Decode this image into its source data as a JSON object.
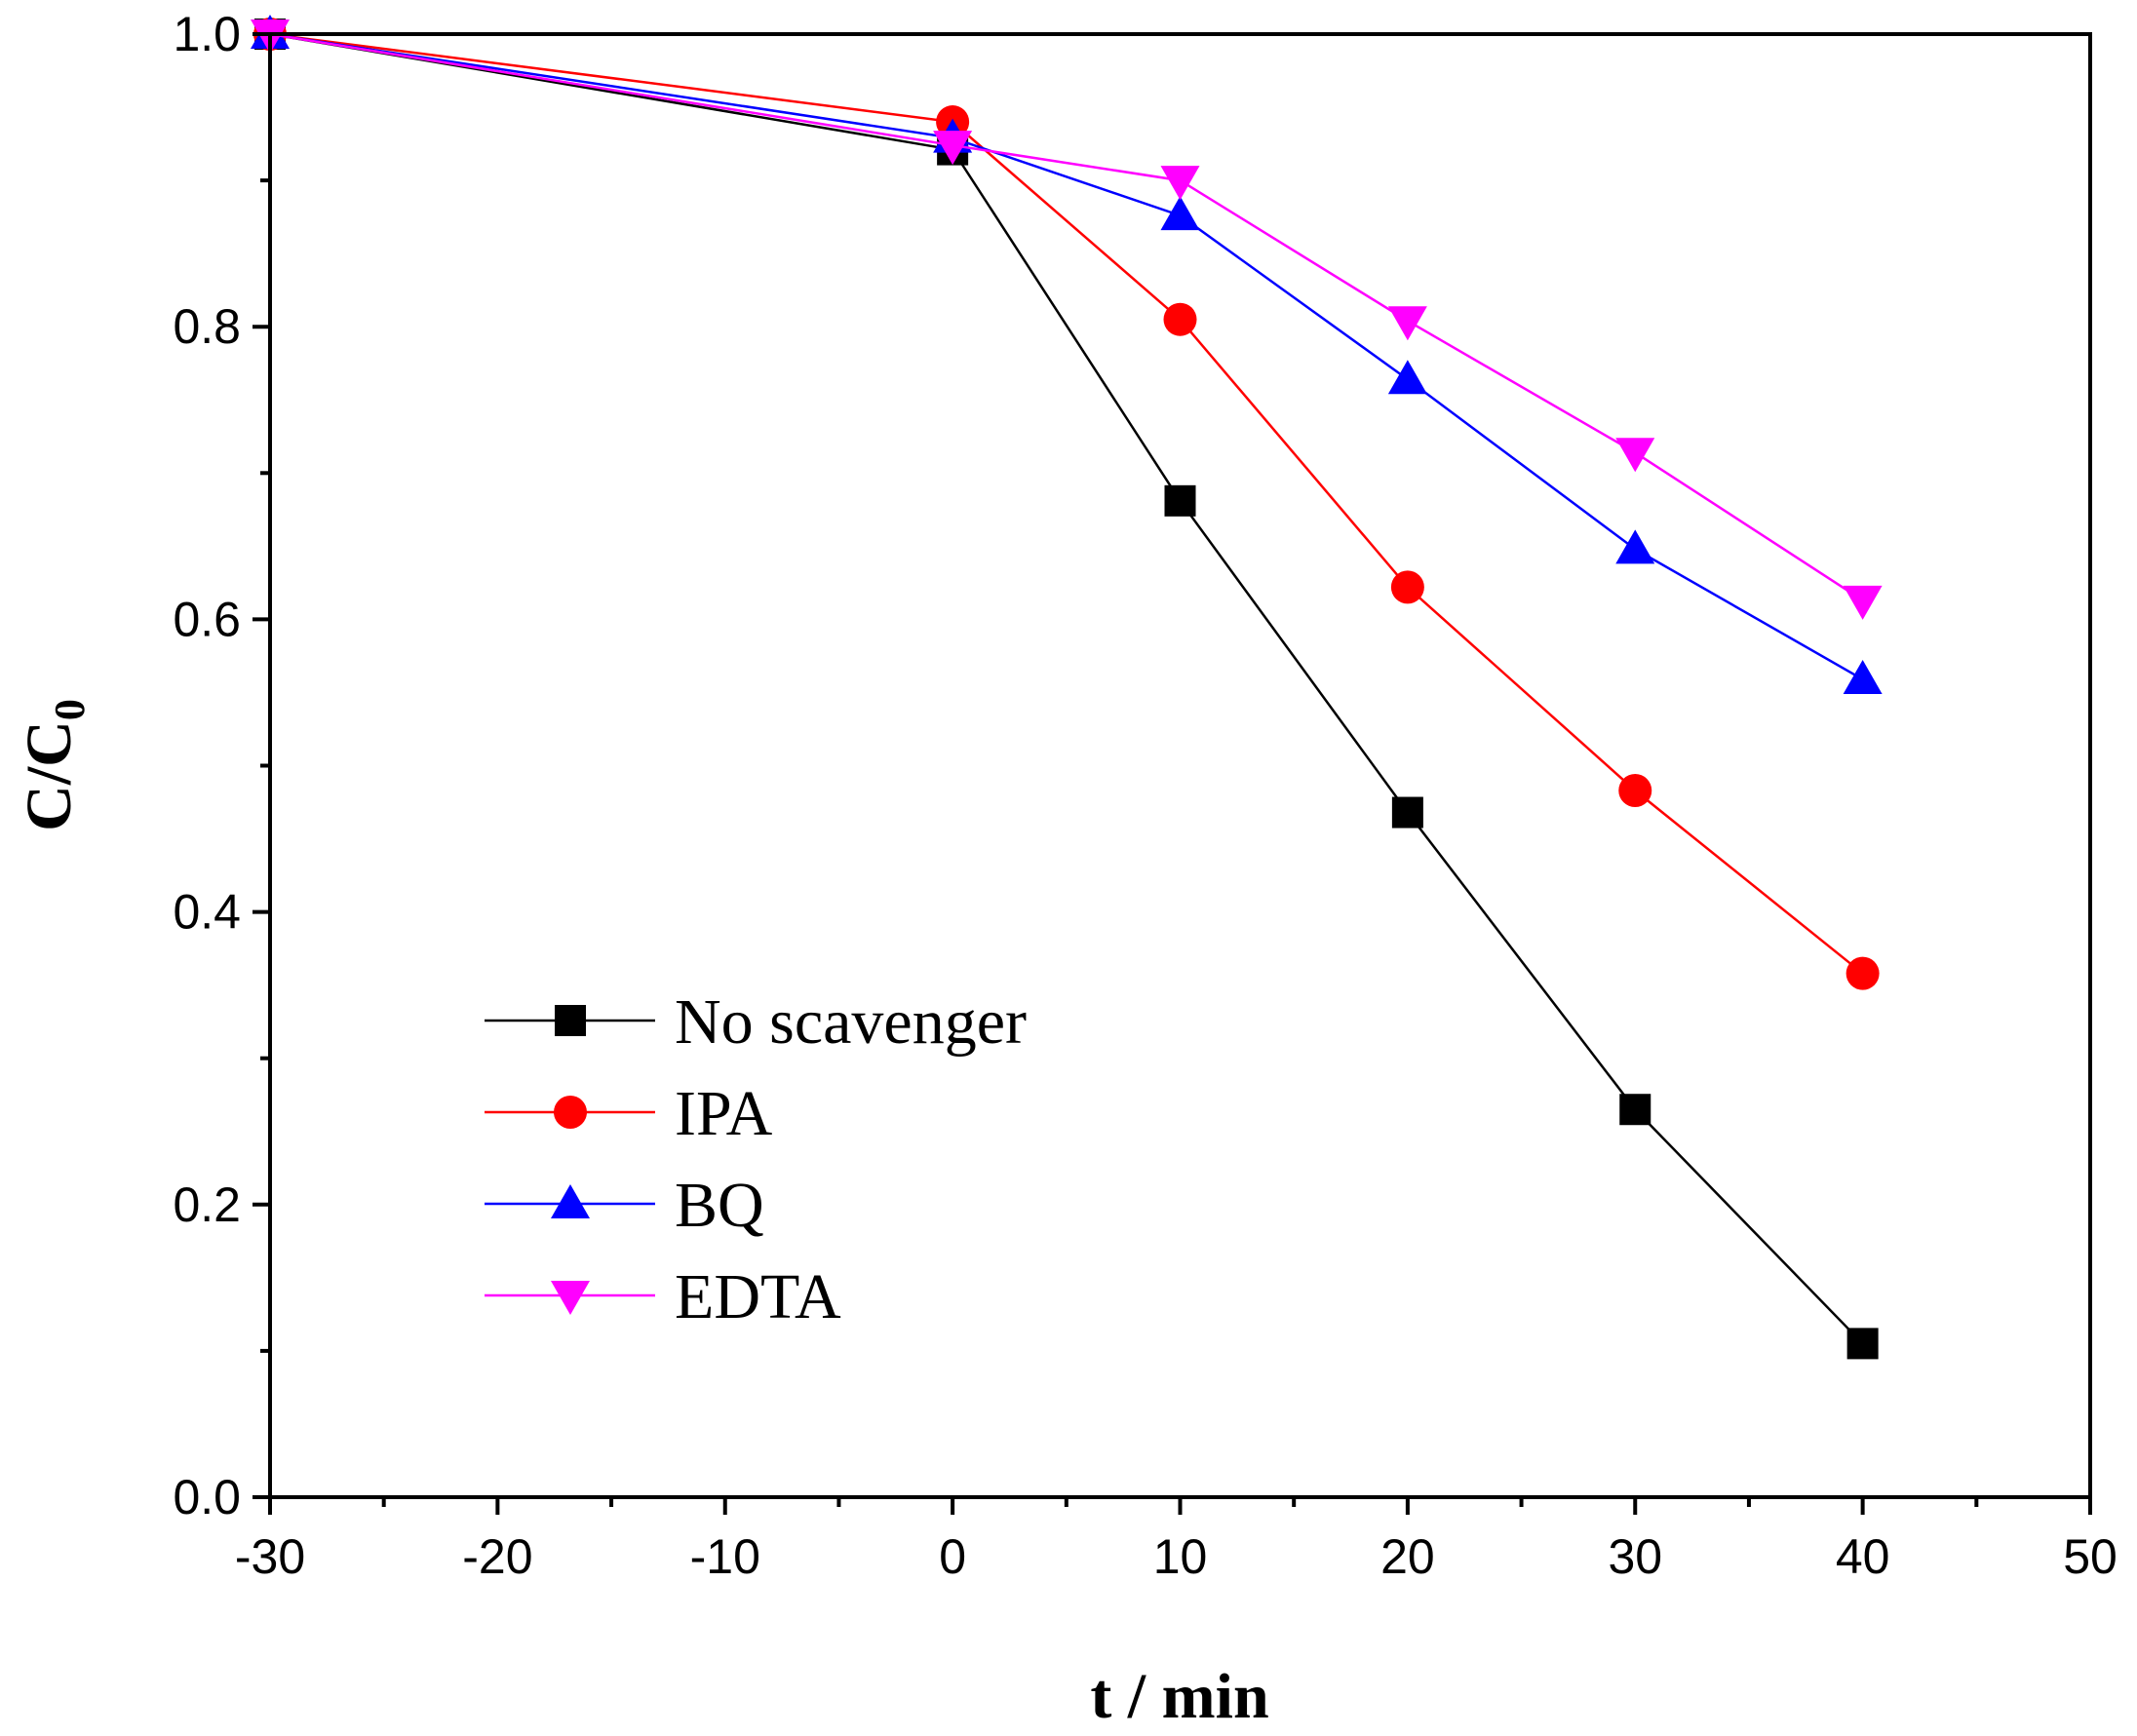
{
  "chart_data": {
    "type": "line",
    "title": "",
    "xlabel": "t / min",
    "ylabel_main": "C/C",
    "ylabel_sub": "0",
    "xlim": [
      -30,
      50
    ],
    "ylim": [
      0.0,
      1.0
    ],
    "x_ticks": [
      -30,
      -20,
      -10,
      0,
      10,
      20,
      30,
      40,
      50
    ],
    "y_ticks": [
      0.0,
      0.2,
      0.4,
      0.6,
      0.8,
      1.0
    ],
    "x_tick_labels": [
      "-30",
      "-20",
      "-10",
      "0",
      "10",
      "20",
      "30",
      "40",
      "50"
    ],
    "y_tick_labels": [
      "0.0",
      "0.2",
      "0.4",
      "0.6",
      "0.8",
      "1.0"
    ],
    "legend_position": "bottom-left",
    "x": [
      -30,
      0,
      10,
      20,
      30,
      40
    ],
    "series": [
      {
        "name": "No scavenger",
        "color": "#000000",
        "marker": "square",
        "values": [
          1.0,
          0.921,
          0.681,
          0.468,
          0.265,
          0.105
        ]
      },
      {
        "name": "IPA",
        "color": "#ff0000",
        "marker": "circle",
        "values": [
          1.0,
          0.94,
          0.805,
          0.622,
          0.483,
          0.358
        ]
      },
      {
        "name": "BQ",
        "color": "#0000ff",
        "marker": "triangle-up",
        "values": [
          1.0,
          0.929,
          0.876,
          0.764,
          0.648,
          0.559
        ]
      },
      {
        "name": "EDTA",
        "color": "#ff00ff",
        "marker": "triangle-down",
        "values": [
          1.0,
          0.924,
          0.9,
          0.804,
          0.714,
          0.613
        ]
      }
    ]
  }
}
